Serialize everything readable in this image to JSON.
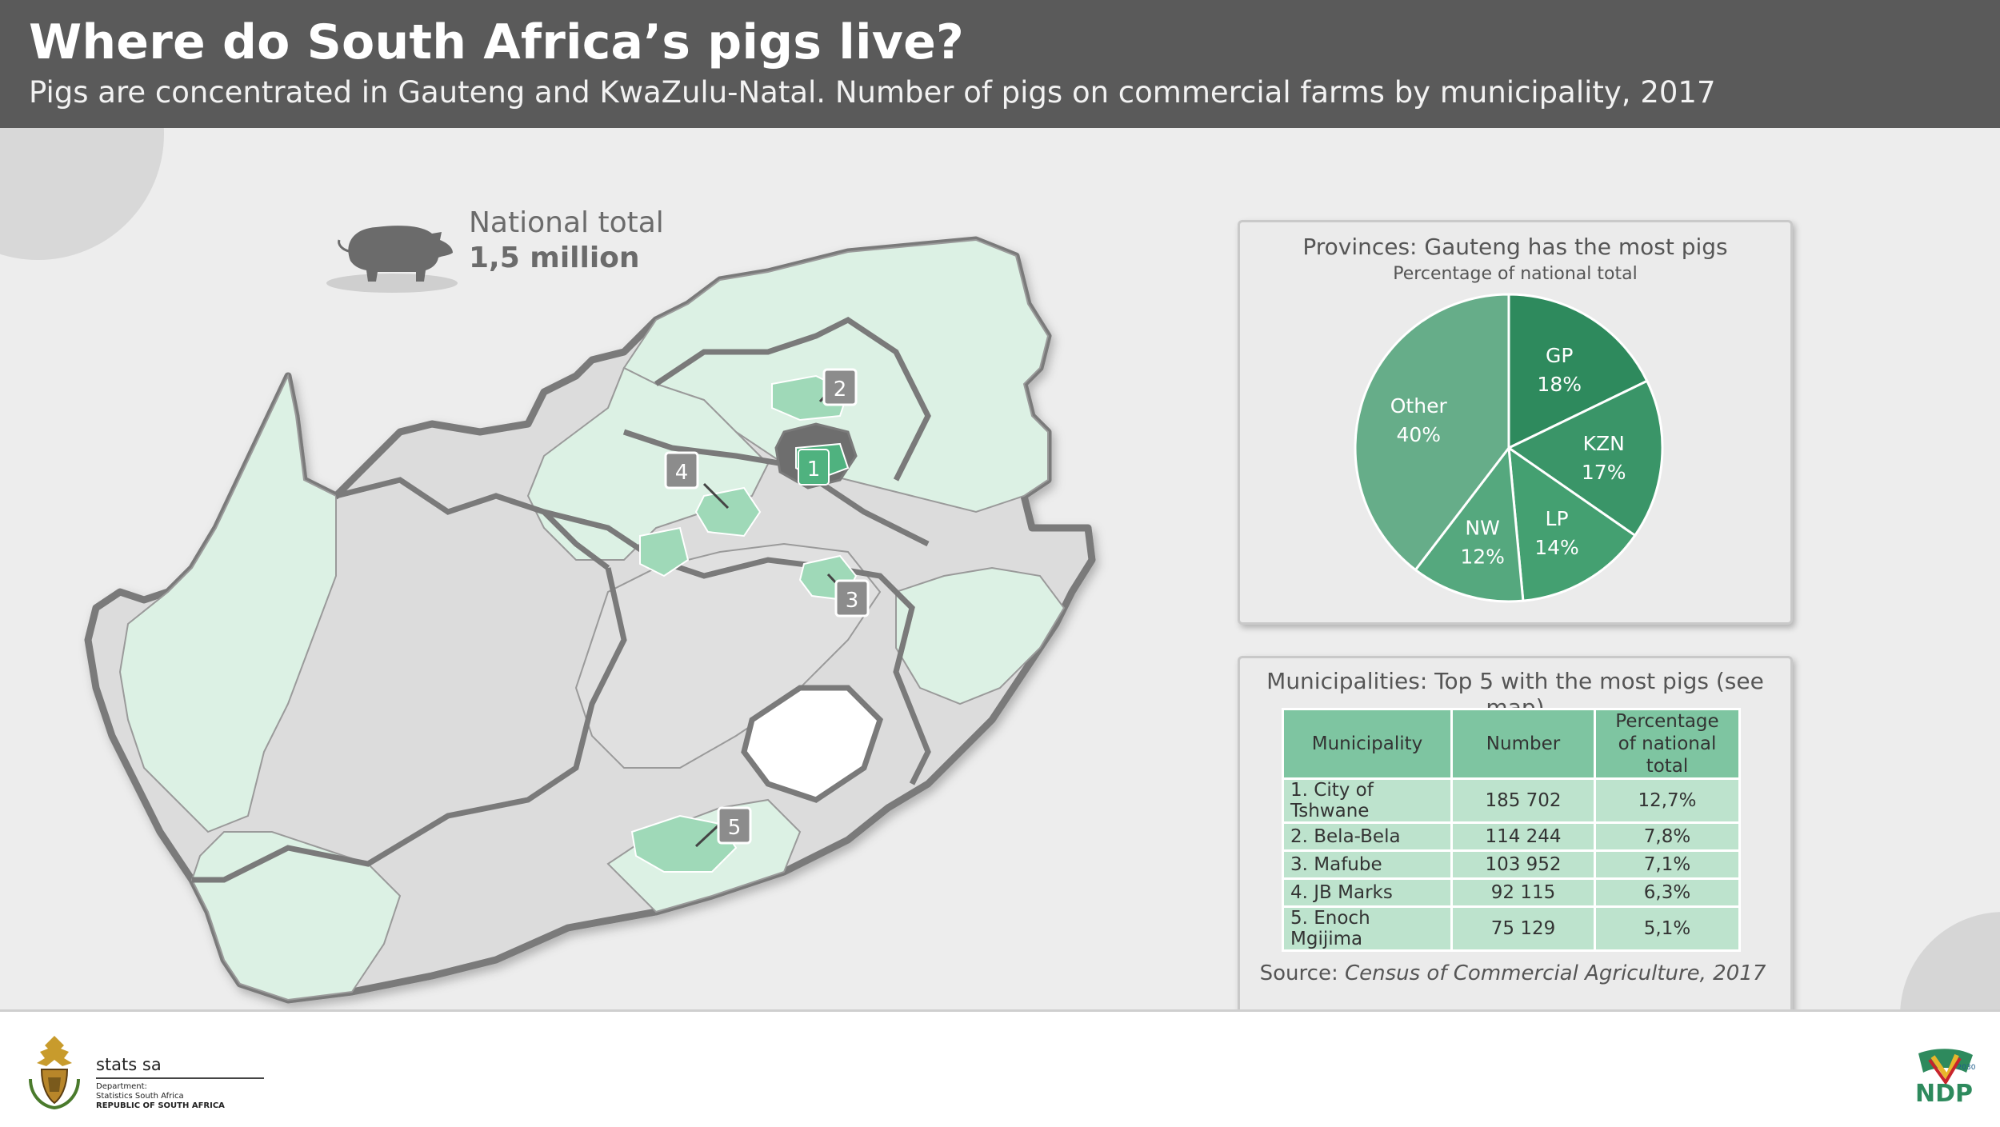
{
  "header": {
    "title": "Where do South Africa’s pigs live?",
    "subtitle": "Pigs are concentrated in Gauteng and KwaZulu-Natal. Number of pigs on commercial farms by municipality, 2017"
  },
  "national_total": {
    "label": "National total",
    "value": "1,5 million"
  },
  "map": {
    "markers": [
      "1",
      "2",
      "3",
      "4",
      "5"
    ],
    "colors": {
      "land": "#dcdcdc",
      "light_green": "#dcf1e4",
      "mid_green": "#9fd9b8",
      "dark_green": "#4fb27f",
      "border": "#7a7a7a"
    }
  },
  "pie_panel": {
    "title": "Provinces: Gauteng has the most pigs",
    "subtitle": "Percentage of national total"
  },
  "chart_data": {
    "type": "pie",
    "title": "Provinces: Gauteng has the most pigs",
    "subtitle": "Percentage of national total",
    "slices": [
      {
        "name": "GP",
        "value": 18,
        "label": "18%",
        "color": "#2e8a5d"
      },
      {
        "name": "KZN",
        "value": 17,
        "label": "17%",
        "color": "#3a9568"
      },
      {
        "name": "LP",
        "value": 14,
        "label": "14%",
        "color": "#44a071"
      },
      {
        "name": "NW",
        "value": 12,
        "label": "12%",
        "color": "#55a87e"
      },
      {
        "name": "Other",
        "value": 40,
        "label": "40%",
        "color": "#66ad89"
      }
    ]
  },
  "table_panel": {
    "title": "Municipalities: Top 5 with the most pigs (see map)",
    "headers": [
      "Municipality",
      "Number",
      "Percentage of national total"
    ],
    "rows": [
      [
        "1. City of Tshwane",
        "185 702",
        "12,7%"
      ],
      [
        "2. Bela-Bela",
        "114 244",
        "7,8%"
      ],
      [
        "3. Mafube",
        "103 952",
        "7,1%"
      ],
      [
        "4. JB Marks",
        "92 115",
        "6,3%"
      ],
      [
        "5. Enoch Mgijima",
        "75 129",
        "5,1%"
      ]
    ]
  },
  "source": {
    "prefix": "Source: ",
    "name": "Census of Commercial Agriculture, 2017"
  },
  "footer": {
    "brand": "stats sa",
    "line1": "Department:",
    "line2": "Statistics South Africa",
    "line3": "REPUBLIC OF SOUTH AFRICA",
    "ndp_text": "NDP",
    "ndp_year": "2030"
  }
}
